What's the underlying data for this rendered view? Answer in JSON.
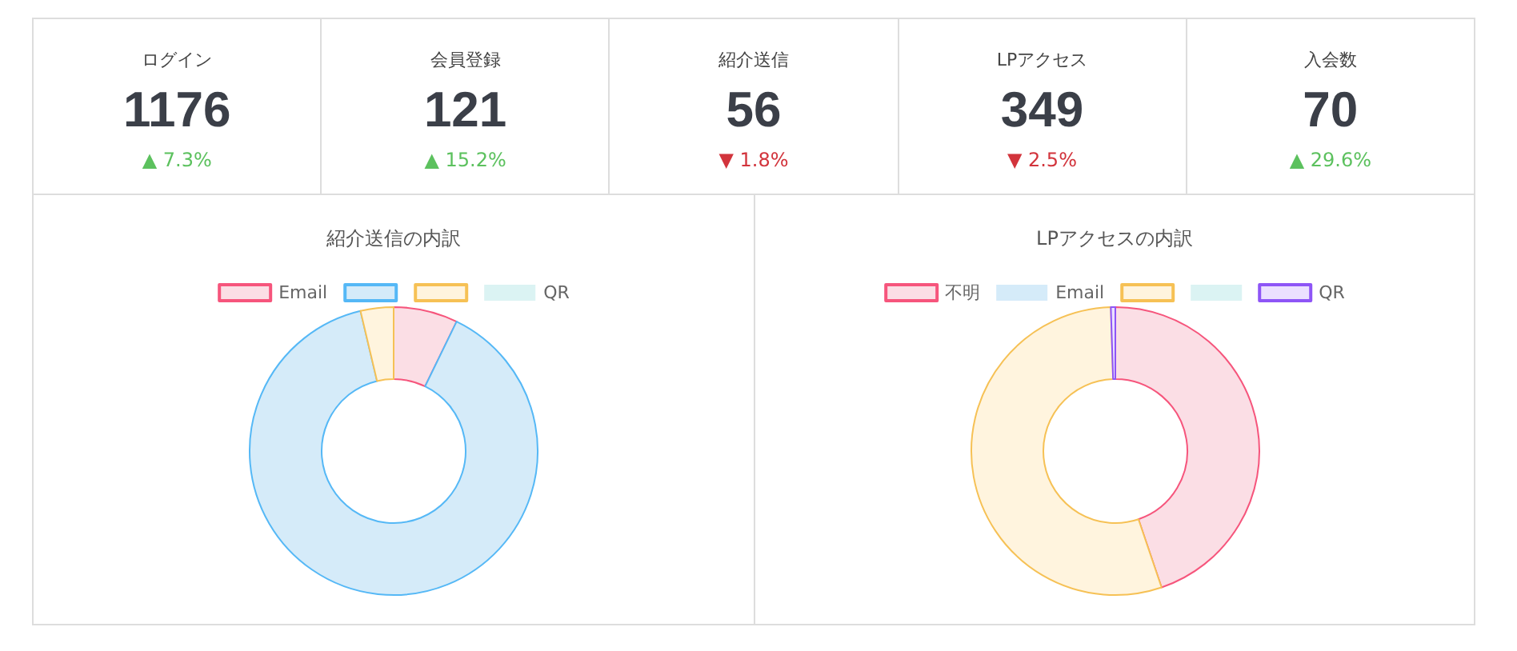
{
  "chart_data": [
    {
      "type": "other",
      "categories": [
        "ログイン",
        "会員登録",
        "紹介送信",
        "LPアクセス",
        "入会数"
      ],
      "values": [
        1176,
        121,
        56,
        349,
        70
      ],
      "data_labels": true,
      "annotations": [
        "▲ 7.3%",
        "▲ 15.2%",
        "▼ 1.8%",
        "▼ 2.5%",
        "▲ 29.6%"
      ],
      "colors": [
        "#5cc15e",
        "#5cc15e",
        "#d2343c",
        "#d2343c",
        "#5cc15e"
      ]
    },
    {
      "type": "donut",
      "title": "紹介送信の内訳",
      "categories": [
        "Email",
        null,
        null,
        "QR"
      ],
      "values": [
        7.2,
        89.1,
        3.7,
        0
      ],
      "colors": [
        "#fbdee5",
        "#d5ebf9",
        "#fff4de",
        "#dbf3f3"
      ],
      "legend": "top"
    },
    {
      "type": "donut",
      "title": "LPアクセスの内訳",
      "categories": [
        "不明",
        "Email",
        null,
        null,
        "QR"
      ],
      "values": [
        44.8,
        0,
        54.7,
        0,
        0.5
      ],
      "colors": [
        "#fbdee5",
        "#d5ebf9",
        "#fff4de",
        "#dbf3f3",
        "#ebe0ff"
      ],
      "legend": "top"
    }
  ]
}
